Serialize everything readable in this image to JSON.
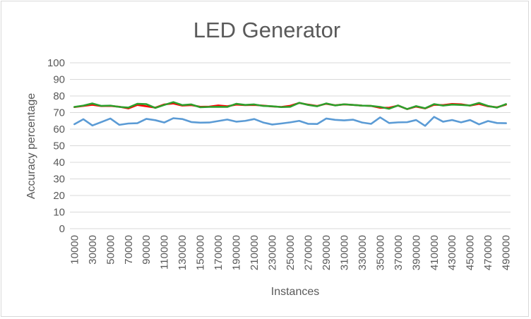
{
  "chart_data": {
    "type": "line",
    "title": "LED Generator",
    "xlabel": "Instances",
    "ylabel": "Accuracy percentage",
    "ylim": [
      0,
      100
    ],
    "yticks": [
      0,
      10,
      20,
      30,
      40,
      50,
      60,
      70,
      80,
      90,
      100
    ],
    "x": [
      10000,
      20000,
      30000,
      40000,
      50000,
      60000,
      70000,
      80000,
      90000,
      100000,
      110000,
      120000,
      130000,
      140000,
      150000,
      160000,
      170000,
      180000,
      190000,
      200000,
      210000,
      220000,
      230000,
      240000,
      250000,
      260000,
      270000,
      280000,
      290000,
      300000,
      310000,
      320000,
      330000,
      340000,
      350000,
      360000,
      370000,
      380000,
      390000,
      400000,
      410000,
      420000,
      430000,
      440000,
      450000,
      460000,
      470000,
      480000,
      490000
    ],
    "xtick_labels": [
      "10000",
      "30000",
      "50000",
      "70000",
      "90000",
      "110000",
      "130000",
      "150000",
      "170000",
      "190000",
      "210000",
      "230000",
      "250000",
      "270000",
      "290000",
      "310000",
      "330000",
      "350000",
      "370000",
      "390000",
      "410000",
      "430000",
      "450000",
      "470000",
      "490000"
    ],
    "grid": true,
    "legend": "none",
    "series": [
      {
        "color": "#5b9bd5",
        "values": [
          63,
          66,
          62.2,
          64.3,
          66.4,
          62.6,
          63.4,
          63.6,
          66.2,
          65.4,
          64,
          66.6,
          66.1,
          64.3,
          63.9,
          64,
          64.9,
          65.8,
          64.5,
          65,
          66.1,
          64,
          62.8,
          63.4,
          64.1,
          65,
          63.2,
          63.1,
          66.4,
          65.6,
          65.3,
          65.7,
          64,
          63.2,
          67.1,
          63.7,
          64.1,
          64.2,
          65.5,
          62,
          67.4,
          64.5,
          65.5,
          64.1,
          65.5,
          62.9,
          64.9,
          63.7,
          63.6
        ]
      },
      {
        "color": "#ff0000",
        "values": [
          73.3,
          74,
          74.7,
          73.9,
          74,
          73.5,
          72.5,
          74.6,
          73.8,
          73,
          74.9,
          75.5,
          74.2,
          74.5,
          73.5,
          73.6,
          74.3,
          73.8,
          74.8,
          74.5,
          74.6,
          74.2,
          73.7,
          73.4,
          74.1,
          75.8,
          74.8,
          74,
          75.3,
          74.4,
          74.9,
          74.6,
          74.2,
          74,
          72.9,
          72.9,
          74.2,
          72.1,
          73.6,
          72.5,
          74.7,
          74.5,
          75.2,
          75,
          74.2,
          75.2,
          73.8,
          73.2,
          74.8
        ]
      },
      {
        "color": "#2ca02c",
        "values": [
          73.4,
          74.2,
          75.5,
          74,
          74.2,
          73.4,
          73,
          75.3,
          75.1,
          72.8,
          74.6,
          76.3,
          74.5,
          74.9,
          73.2,
          73.4,
          73.5,
          73.4,
          75.3,
          74.6,
          74.9,
          74,
          73.8,
          73.3,
          73.5,
          75.9,
          74.6,
          73.8,
          75.5,
          74.3,
          75,
          74.6,
          74.2,
          74,
          73.4,
          72.3,
          74.3,
          72.1,
          73.9,
          72.6,
          75.1,
          74.2,
          74.8,
          74.6,
          74.3,
          75.8,
          74,
          73,
          75.1
        ]
      }
    ]
  }
}
